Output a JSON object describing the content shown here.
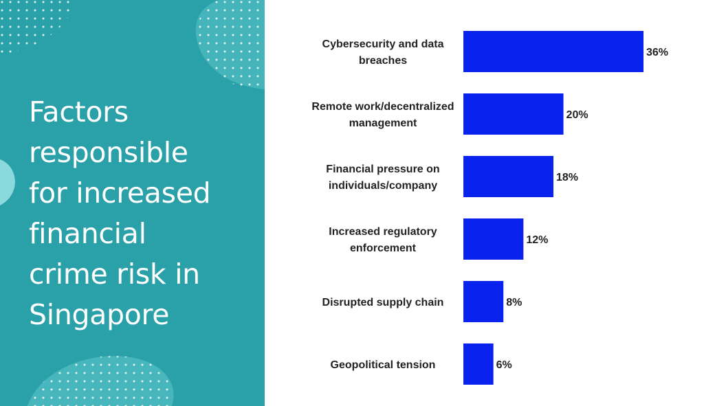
{
  "slide": {
    "title_lines": [
      "Factors",
      "responsible",
      "for increased",
      "financial",
      "crime risk in",
      "Singapore"
    ],
    "panel_color": "#2aa0a8",
    "bar_color": "#0a22ee"
  },
  "chart_data": {
    "type": "bar",
    "orientation": "horizontal",
    "categories": [
      [
        "Cybersecurity and data",
        "breaches"
      ],
      [
        "Remote work/decentralized",
        "management"
      ],
      [
        "Financial pressure on",
        "individuals/company"
      ],
      [
        "Increased regulatory",
        "enforcement"
      ],
      [
        "Disrupted supply chain"
      ],
      [
        "Geopolitical tension"
      ]
    ],
    "values": [
      36,
      20,
      18,
      12,
      8,
      6
    ],
    "value_labels": [
      "36%",
      "20%",
      "18%",
      "12%",
      "8%",
      "6%"
    ],
    "unit": "%",
    "xlim": [
      0,
      36
    ],
    "grid": false,
    "legend": "none"
  }
}
